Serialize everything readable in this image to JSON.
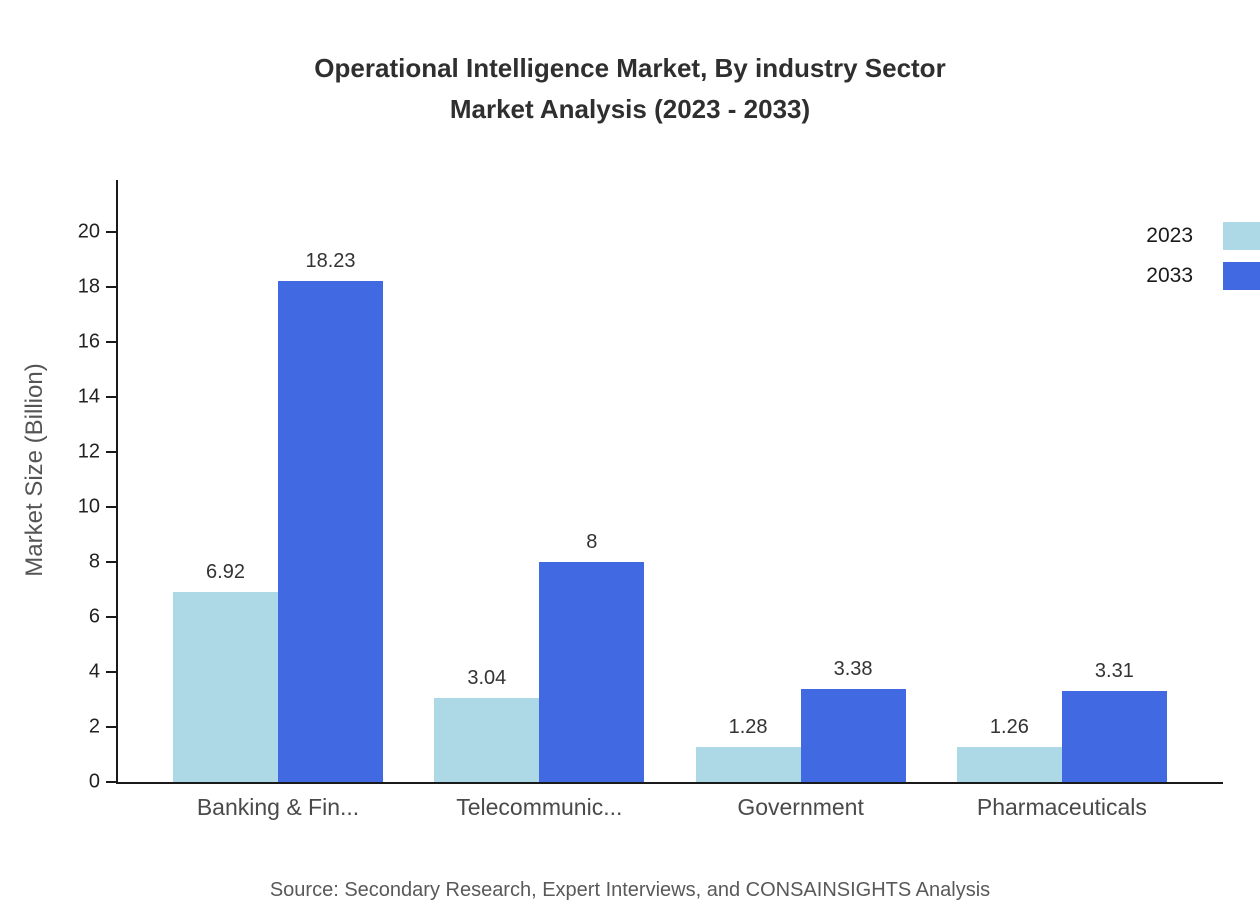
{
  "chart_data": {
    "type": "bar",
    "title": "Operational Intelligence Market, By industry Sector Market Analysis (2023 - 2033)",
    "title_lines": [
      "Operational Intelligence Market, By industry Sector",
      "Market Analysis (2023 - 2033)"
    ],
    "xlabel": "",
    "ylabel": "Market Size (Billion)",
    "categories": [
      "Banking & Fin...",
      "Telecommunic...",
      "Government",
      "Pharmaceuticals"
    ],
    "series": [
      {
        "name": "2023",
        "color": "#add8e6",
        "values": [
          6.92,
          3.04,
          1.28,
          1.26
        ]
      },
      {
        "name": "2033",
        "color": "#4169e1",
        "values": [
          18.23,
          8,
          3.38,
          3.31
        ]
      }
    ],
    "yticks": [
      0,
      2,
      4,
      6,
      8,
      10,
      12,
      14,
      16,
      18,
      20
    ],
    "ylim": [
      0,
      21.8
    ],
    "grid": false,
    "legend_position": "top-right",
    "source": "Source: Secondary Research, Expert Interviews, and CONSAINSIGHTS Analysis"
  },
  "colors": {
    "axis": "#1a1a1a",
    "title_text": "#2f2f2f",
    "series_2023": "#add8e6",
    "series_2033": "#4169e1"
  }
}
